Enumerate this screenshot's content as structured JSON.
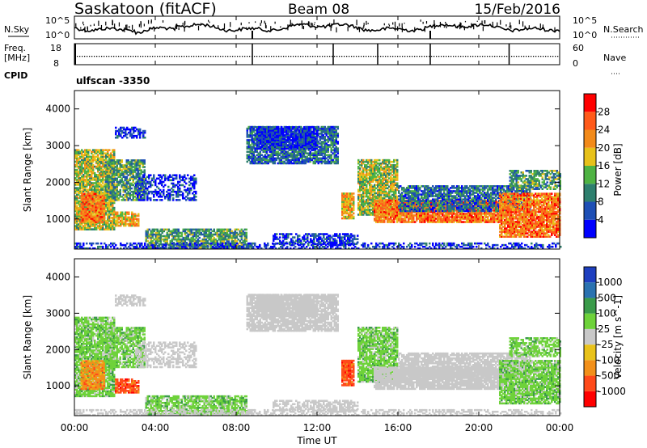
{
  "header": {
    "station": "Saskatoon (fitACF)",
    "beam": "Beam 08",
    "date": "15/Feb/2016"
  },
  "top_panels": {
    "noise_left_label": "N.Sky",
    "noise_right_label": "N.Search",
    "noise_left_ticks": [
      "10^5",
      "10^0"
    ],
    "noise_right_ticks": [
      "10^5",
      "10^0"
    ],
    "freq_left_label": "Freq.",
    "freq_left_unit": "[MHz]",
    "freq_left_ticks": [
      "18",
      "8"
    ],
    "nave_label": "Nave",
    "nave_ticks": [
      "60",
      "0"
    ],
    "cpid_label": "CPID",
    "cpid_value": "ulfscan -3350"
  },
  "chart_data": [
    {
      "type": "heatmap",
      "name": "power",
      "ylabel": "Slant Range [km]",
      "yticks": [
        "1000",
        "2000",
        "3000",
        "4000"
      ],
      "ylim": [
        180,
        4500
      ],
      "xlim": [
        0,
        24
      ],
      "colorbar_label": "Power [dB]",
      "colorbar_ticks": [
        "4",
        "8",
        "12",
        "16",
        "20",
        "24",
        "28"
      ],
      "colors": [
        "#0000ff",
        "#1e4fb5",
        "#2e7f6e",
        "#4fb343",
        "#e7c11a",
        "#f28a1a",
        "#ff5a1a",
        "#ff0000"
      ]
    },
    {
      "type": "heatmap",
      "name": "velocity",
      "ylabel": "Slant Range [km]",
      "yticks": [
        "1000",
        "2000",
        "3000",
        "4000"
      ],
      "ylim": [
        180,
        4500
      ],
      "xlim": [
        0,
        24
      ],
      "colorbar_label": "Velocity [m s^-1]",
      "colorbar_ticks": [
        "1000",
        "500",
        "100",
        "25",
        "-25",
        "-100",
        "-500",
        "-1000"
      ],
      "colors": [
        "#1e3fbf",
        "#2a72b0",
        "#3a9b4a",
        "#6ed23a",
        "#c8c8c8",
        "#e9c21a",
        "#f2901a",
        "#ff4a1a",
        "#ff0000"
      ]
    }
  ],
  "xaxis": {
    "label": "Time UT",
    "ticks": [
      "00:00",
      "04:00",
      "08:00",
      "12:00",
      "16:00",
      "20:00",
      "00:00"
    ]
  }
}
